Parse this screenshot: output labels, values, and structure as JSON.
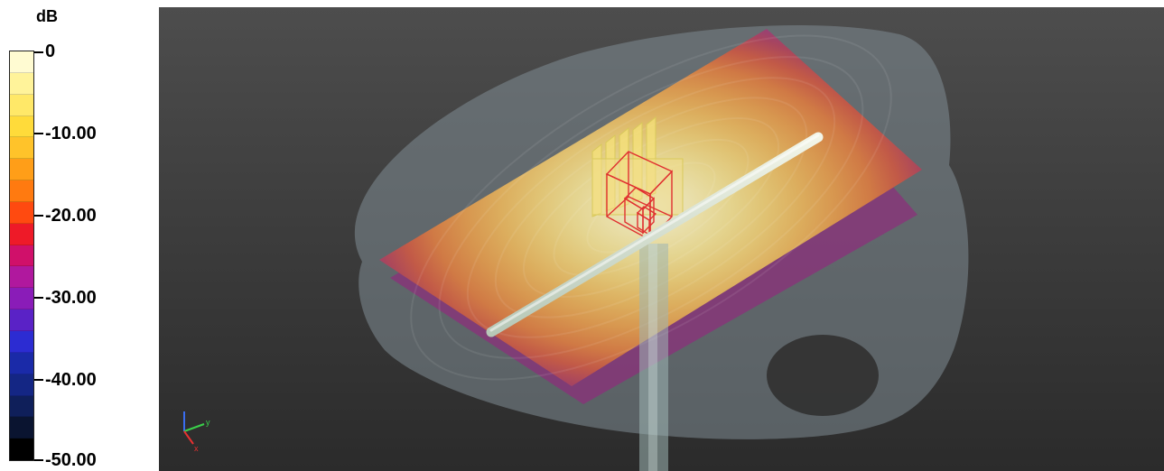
{
  "legend": {
    "unit": "dB",
    "labels": [
      "0",
      "-10.00",
      "-20.00",
      "-30.00",
      "-40.00",
      "-50.00"
    ],
    "colors": [
      "#fffbd2",
      "#fff39a",
      "#ffe868",
      "#ffdb3a",
      "#ffc32a",
      "#ff9e18",
      "#ff7a10",
      "#ff4a10",
      "#ee1a28",
      "#d0106a",
      "#b0189e",
      "#8a1cb8",
      "#5a22c6",
      "#2c2cd2",
      "#1a2aa8",
      "#142684",
      "#0f1f5a",
      "#0a1430",
      "#000000"
    ]
  },
  "viewport": {
    "triad_icon": "axis-triad-icon"
  }
}
